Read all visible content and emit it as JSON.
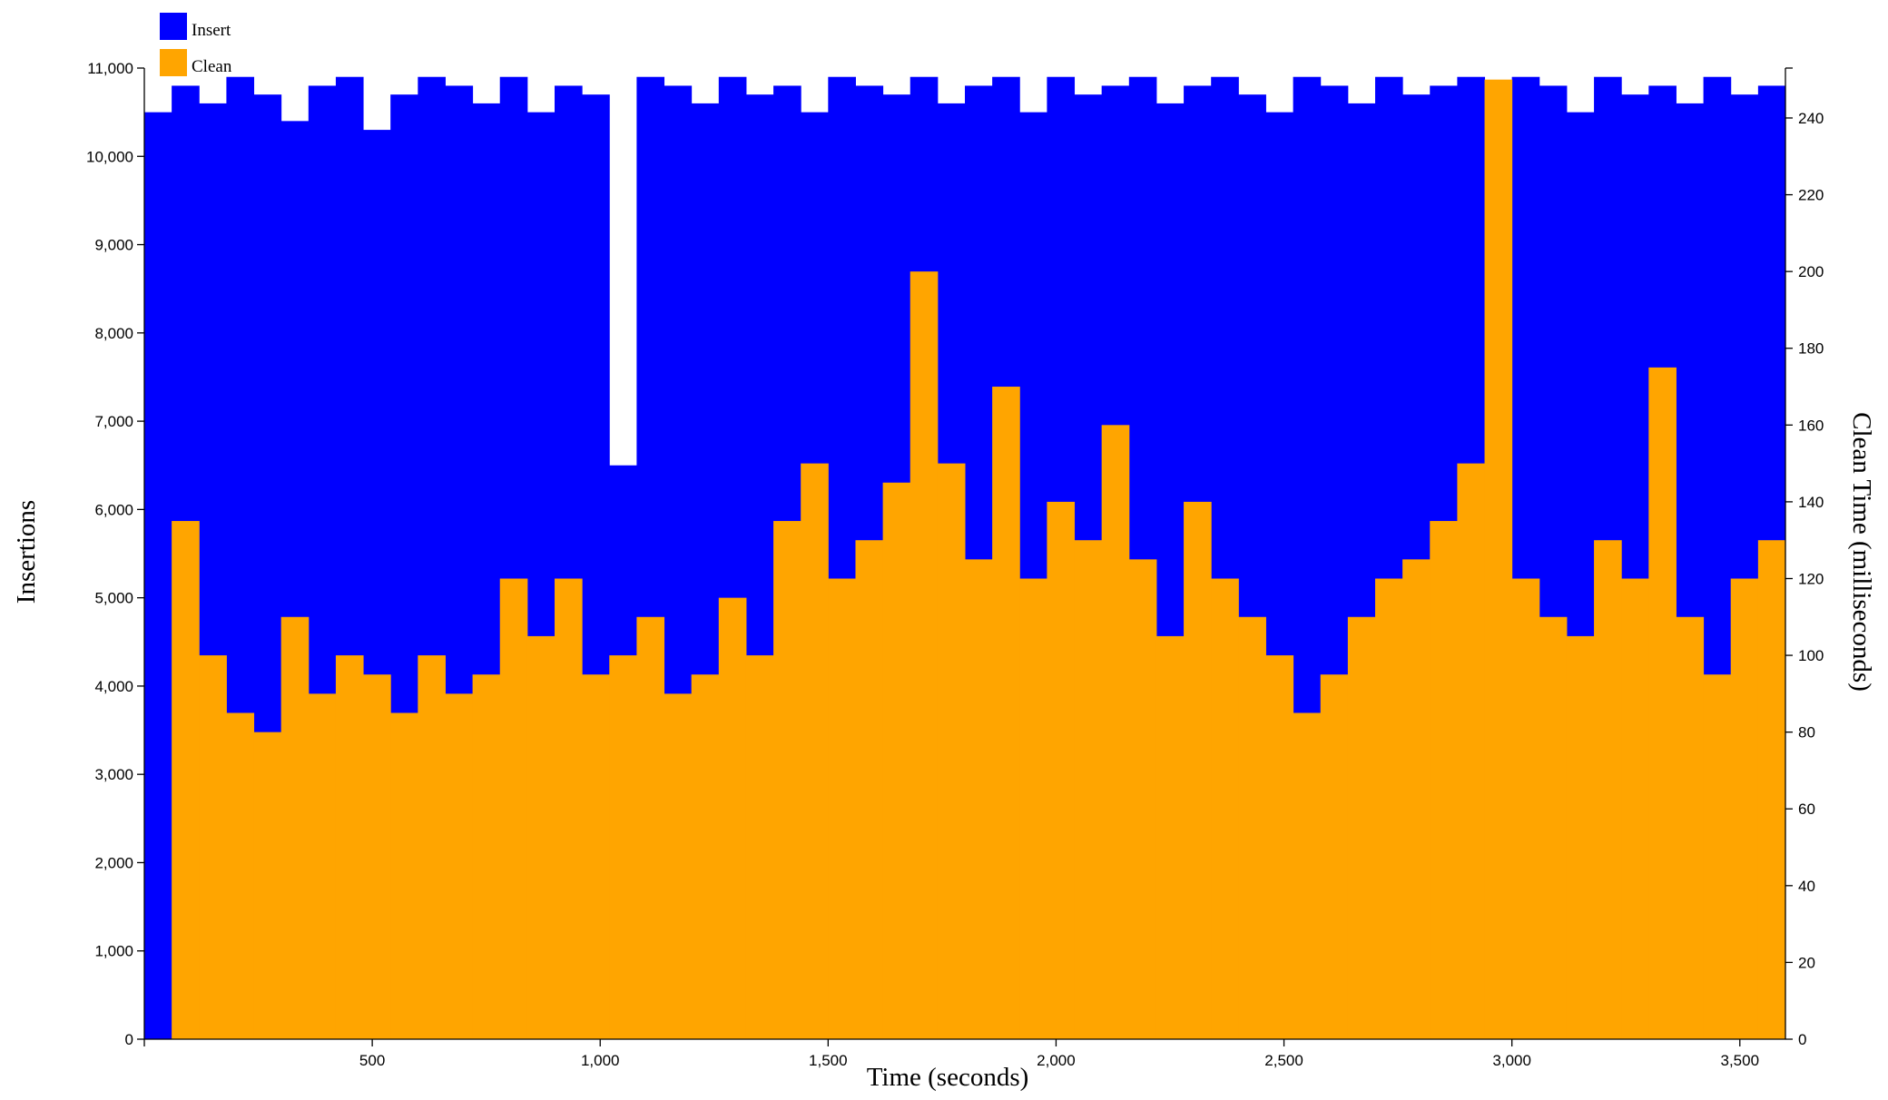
{
  "chart_data": {
    "type": "bar",
    "title": "",
    "xlabel": "Time (seconds)",
    "ylabel_left": "Insertions",
    "ylabel_right": "Clean Time (milliseconds)",
    "xlim": [
      0,
      3600
    ],
    "ylim_left": [
      0,
      11000
    ],
    "ylim_right": [
      0,
      253
    ],
    "x_ticks": [
      "500",
      "1,000",
      "1,500",
      "2,000",
      "2,500",
      "3,000",
      "3,500"
    ],
    "y_left_ticks": [
      "0",
      "1,000",
      "2,000",
      "3,000",
      "4,000",
      "5,000",
      "6,000",
      "7,000",
      "8,000",
      "9,000",
      "10,000",
      "11,000"
    ],
    "y_right_ticks": [
      "0",
      "20",
      "40",
      "60",
      "80",
      "100",
      "120",
      "140",
      "160",
      "180",
      "200",
      "220",
      "240"
    ],
    "legend": {
      "position": "top-left",
      "entries": [
        "Insert",
        "Clean"
      ]
    },
    "grid": false,
    "series": [
      {
        "name": "Insert",
        "color": "#0000ff",
        "axis": "left",
        "sample_interval_s": 60,
        "x": [
          0,
          60,
          120,
          180,
          240,
          300,
          360,
          420,
          480,
          540,
          600,
          660,
          720,
          780,
          840,
          900,
          960,
          1020,
          1080,
          1140,
          1200,
          1260,
          1320,
          1380,
          1440,
          1500,
          1560,
          1620,
          1680,
          1740,
          1800,
          1860,
          1920,
          1980,
          2040,
          2100,
          2160,
          2220,
          2280,
          2340,
          2400,
          2460,
          2520,
          2580,
          2640,
          2700,
          2760,
          2820,
          2880,
          2940,
          3000,
          3060,
          3120,
          3180,
          3240,
          3300,
          3360,
          3420,
          3480,
          3540,
          3600
        ],
        "values": [
          10500,
          10800,
          10600,
          10900,
          10700,
          10400,
          10800,
          10900,
          10300,
          10700,
          10900,
          10800,
          10600,
          10900,
          10500,
          10800,
          10700,
          6500,
          10900,
          10800,
          10600,
          10900,
          10700,
          10800,
          10500,
          10900,
          10800,
          10700,
          10900,
          10600,
          10800,
          10900,
          10500,
          10900,
          10700,
          10800,
          10900,
          10600,
          10800,
          10900,
          10700,
          10500,
          10900,
          10800,
          10600,
          10900,
          10700,
          10800,
          10900,
          10600,
          10900,
          10800,
          10500,
          10900,
          10700,
          10800,
          10600,
          10900,
          10700,
          10800,
          10500
        ]
      },
      {
        "name": "Clean",
        "color": "#ffa500",
        "axis": "right",
        "sample_interval_s": 60,
        "x": [
          0,
          60,
          120,
          180,
          240,
          300,
          360,
          420,
          480,
          540,
          600,
          660,
          720,
          780,
          840,
          900,
          960,
          1020,
          1080,
          1140,
          1200,
          1260,
          1320,
          1380,
          1440,
          1500,
          1560,
          1620,
          1680,
          1740,
          1800,
          1860,
          1920,
          1980,
          2040,
          2100,
          2160,
          2220,
          2280,
          2340,
          2400,
          2460,
          2520,
          2580,
          2640,
          2700,
          2760,
          2820,
          2880,
          2940,
          3000,
          3060,
          3120,
          3180,
          3240,
          3300,
          3360,
          3420,
          3480,
          3540,
          3600
        ],
        "values": [
          0,
          135,
          100,
          85,
          80,
          110,
          90,
          100,
          95,
          85,
          100,
          90,
          95,
          120,
          105,
          120,
          95,
          100,
          110,
          90,
          95,
          115,
          100,
          135,
          150,
          120,
          130,
          145,
          200,
          150,
          125,
          170,
          120,
          140,
          130,
          160,
          125,
          105,
          140,
          120,
          110,
          100,
          85,
          95,
          110,
          120,
          125,
          135,
          150,
          250,
          120,
          110,
          105,
          130,
          120,
          175,
          110,
          95,
          120,
          130,
          135
        ]
      }
    ]
  }
}
